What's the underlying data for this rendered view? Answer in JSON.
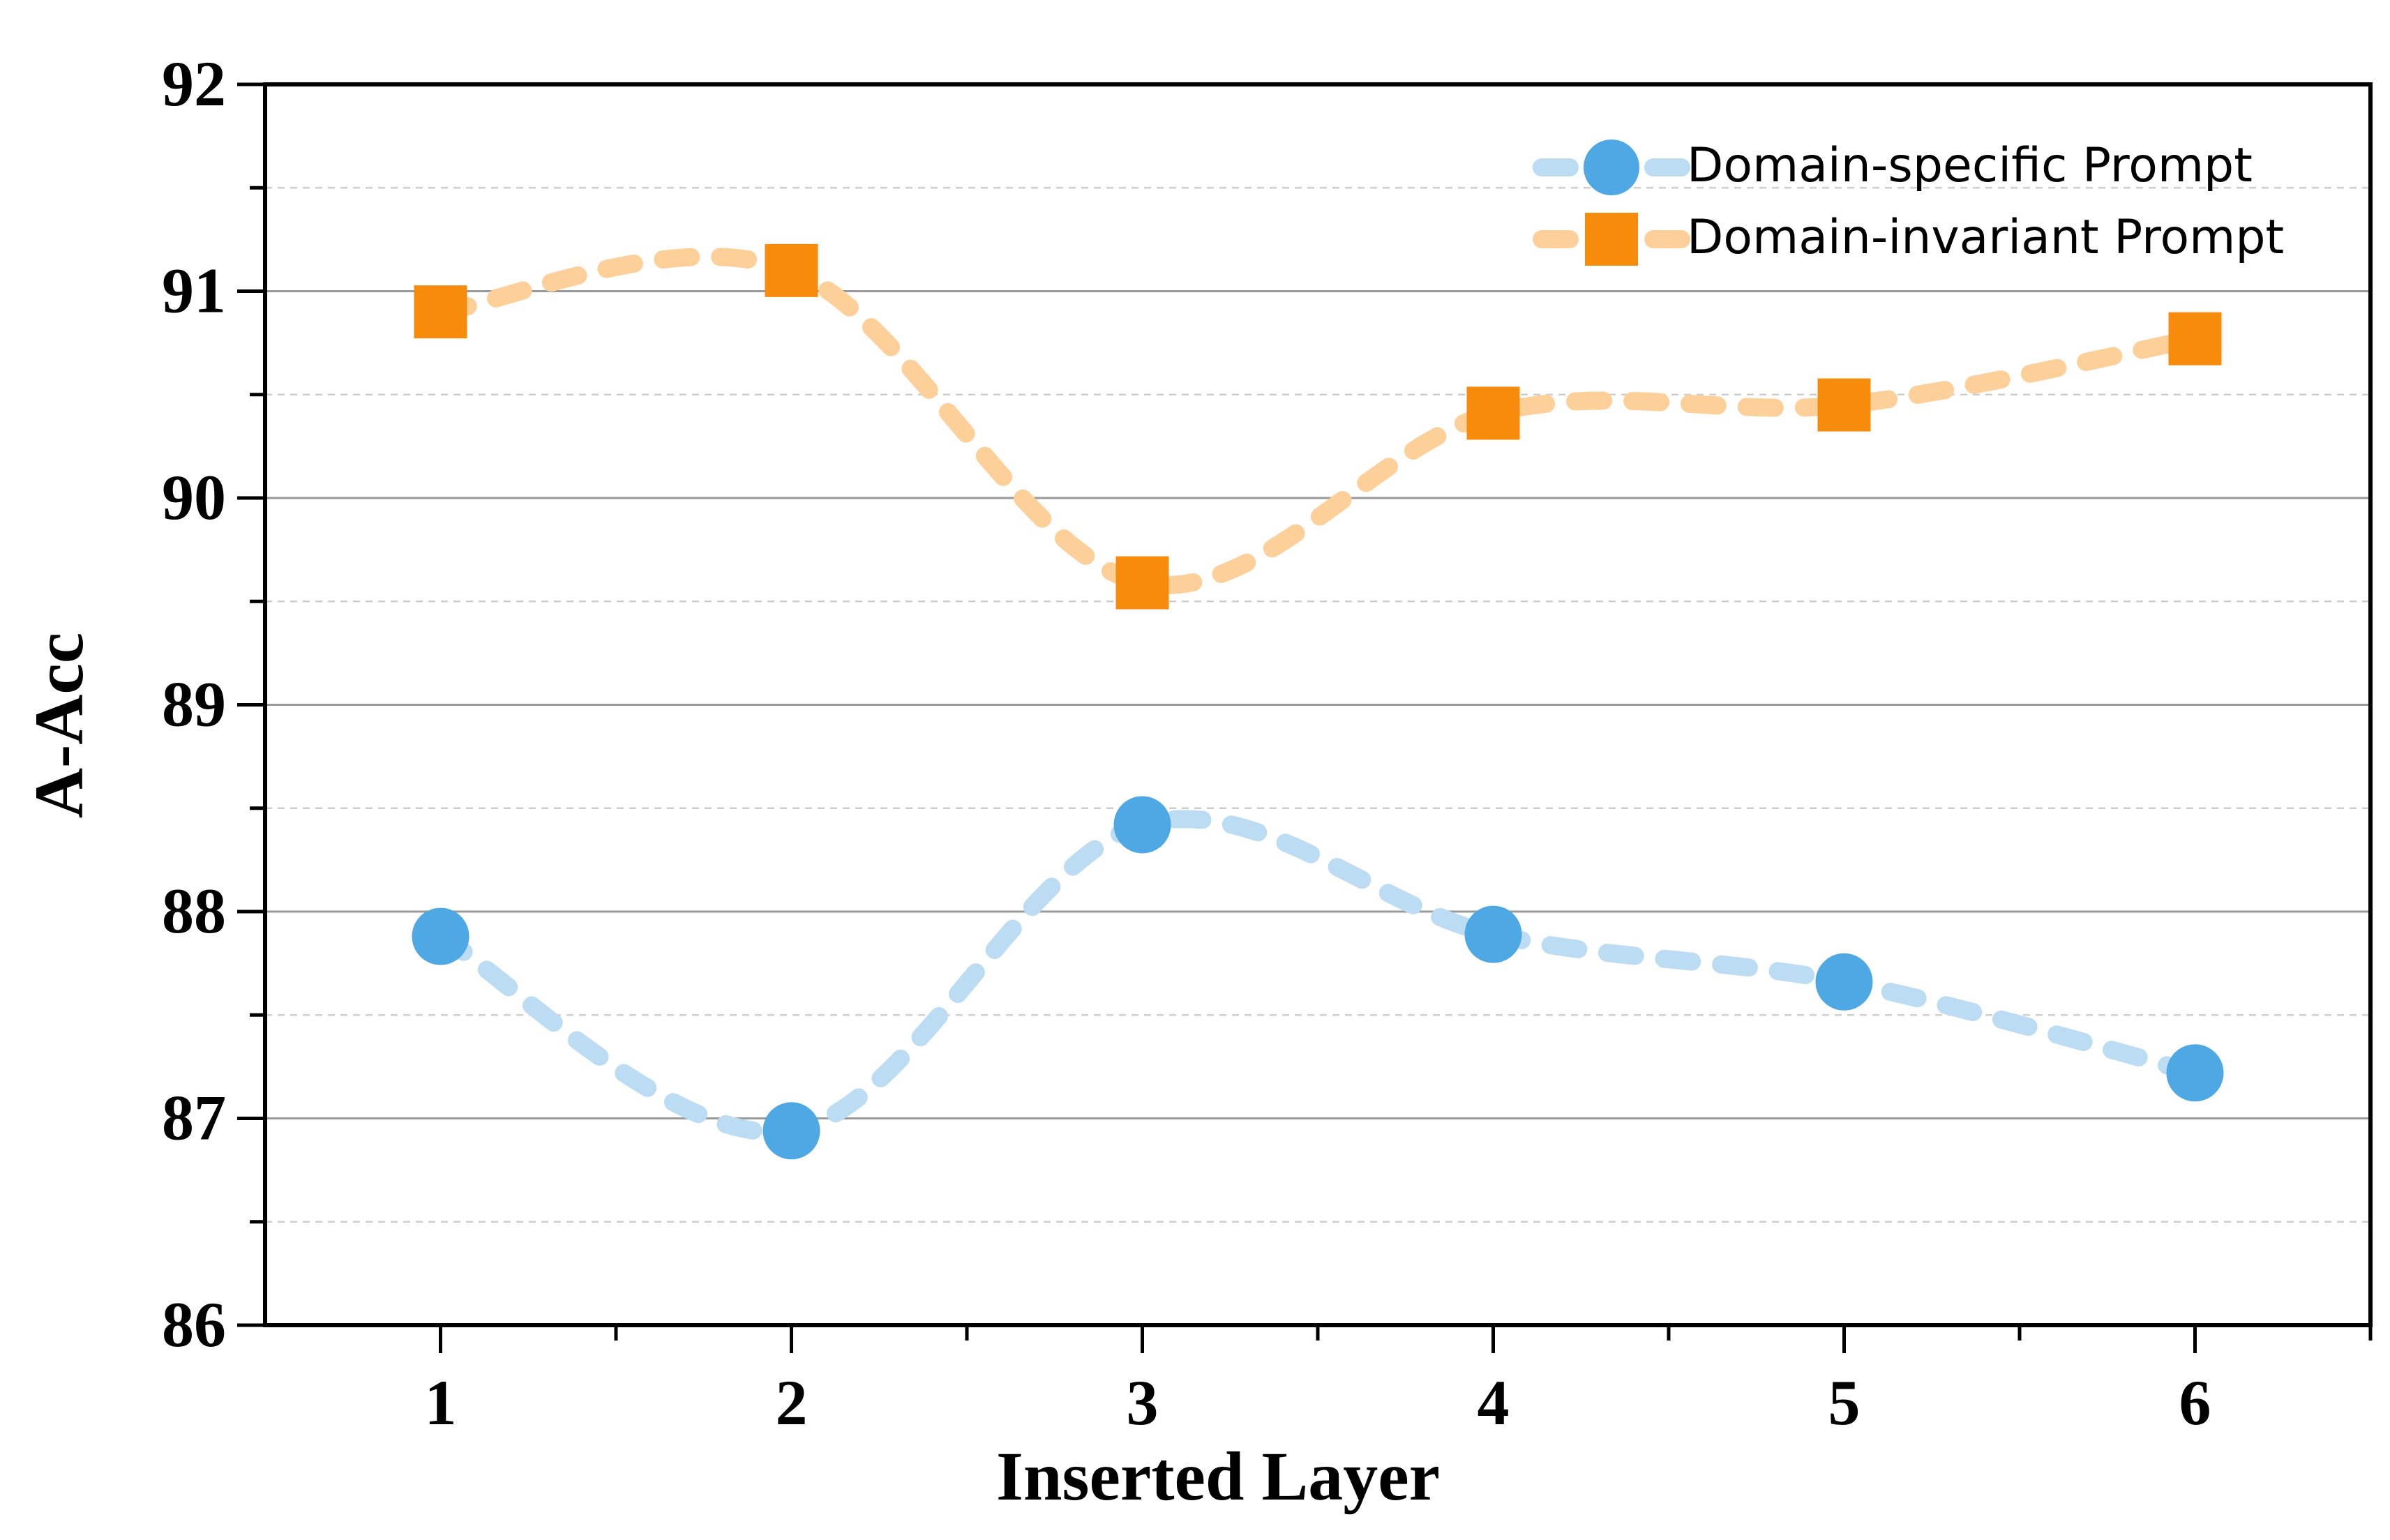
{
  "chart_data": {
    "type": "line",
    "title": "",
    "xlabel": "Inserted Layer",
    "ylabel": "A-Acc",
    "x": [
      1,
      2,
      3,
      4,
      5,
      6
    ],
    "x_tick_labels": [
      "1",
      "2",
      "3",
      "4",
      "5",
      "6"
    ],
    "xlim": [
      0.5,
      6.5
    ],
    "ylim": [
      86,
      92
    ],
    "y_ticks": [
      86,
      87,
      88,
      89,
      90,
      91,
      92
    ],
    "y_tick_labels": [
      "86",
      "87",
      "88",
      "89",
      "90",
      "91",
      "92"
    ],
    "grid": true,
    "legend_position": "top-right",
    "series": [
      {
        "name": "Domain-specific Prompt",
        "marker": "circle",
        "line_style": "dashed",
        "color": "#4ea8e3",
        "line_color": "#bcdcf4",
        "values": [
          87.88,
          86.94,
          88.42,
          87.89,
          87.66,
          87.22
        ]
      },
      {
        "name": "Domain-invariant Prompt",
        "marker": "square",
        "line_style": "dashed",
        "color": "#f68b0c",
        "line_color": "#fdd099",
        "values": [
          90.9,
          91.1,
          89.59,
          90.41,
          90.45,
          90.77
        ]
      }
    ]
  }
}
